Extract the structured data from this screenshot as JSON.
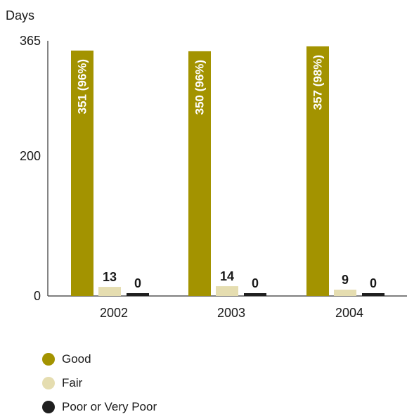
{
  "chart_data": {
    "type": "bar",
    "ylabel": "Days",
    "ylim": [
      0,
      365
    ],
    "y_ticks": [
      0,
      200,
      365
    ],
    "categories": [
      "2002",
      "2003",
      "2004"
    ],
    "series": [
      {
        "name": "Good",
        "color": "#a39300",
        "values": [
          351,
          350,
          357
        ],
        "labels": [
          "351 (96%)",
          "350 (96%)",
          "357 (98%)"
        ]
      },
      {
        "name": "Fair",
        "color": "#e5ddb0",
        "values": [
          13,
          14,
          9
        ],
        "labels": [
          "13",
          "14",
          "9"
        ]
      },
      {
        "name": "Poor or Very Poor",
        "color": "#1f1f1f",
        "values": [
          0,
          0,
          0
        ],
        "labels": [
          "0",
          "0",
          "0"
        ]
      }
    ],
    "grid": false,
    "legend_position": "bottom-left"
  }
}
